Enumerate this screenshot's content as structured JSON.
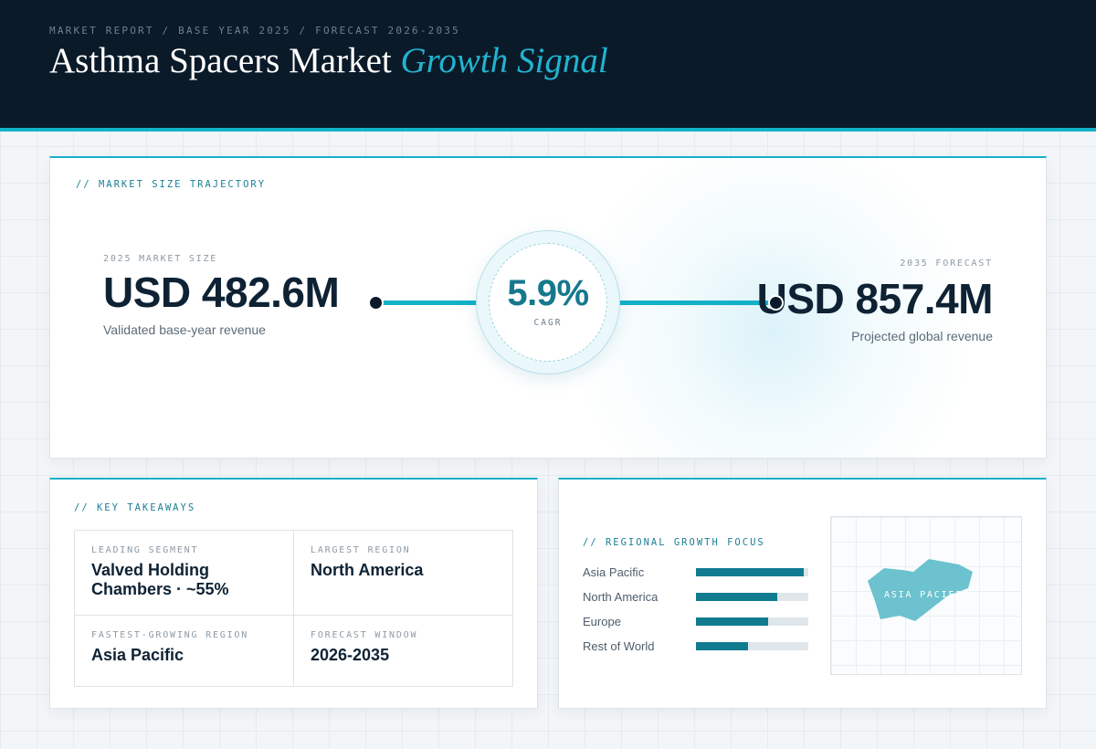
{
  "header": {
    "kicker": "MARKET REPORT / BASE YEAR 2025 / FORECAST 2026-2035",
    "title_main": "Asthma Spacers Market",
    "title_accent": "Growth Signal"
  },
  "trajectory": {
    "section_label": "// MARKET SIZE TRAJECTORY",
    "base_label": "2025 MARKET SIZE",
    "base_value": "USD 482.6M",
    "base_caption": "Validated base-year revenue",
    "cagr_value": "5.9%",
    "cagr_label": "CAGR",
    "forecast_label": "2035 FORECAST",
    "forecast_value": "USD 857.4M",
    "forecast_caption": "Projected global revenue"
  },
  "takeaways": {
    "section_label": "// KEY TAKEAWAYS",
    "cells": [
      {
        "label": "LEADING SEGMENT",
        "value": "Valved Holding Chambers · ~55%"
      },
      {
        "label": "LARGEST REGION",
        "value": "North America"
      },
      {
        "label": "FASTEST-GROWING REGION",
        "value": "Asia Pacific"
      },
      {
        "label": "FORECAST WINDOW",
        "value": "2026-2035"
      }
    ]
  },
  "regional": {
    "section_label": "// REGIONAL GROWTH FOCUS",
    "map_label": "ASIA PACIFIC",
    "map_fill": "#6cc2cf"
  },
  "colors": {
    "accent": "#14b1c9",
    "bar_fill": "#117b8f",
    "bar_track": "#dfe6ec",
    "navy": "#0b1a28"
  },
  "chart_data": {
    "type": "bar",
    "orientation": "horizontal",
    "categories": [
      "Asia Pacific",
      "North America",
      "Europe",
      "Rest of World"
    ],
    "values": [
      0.96,
      0.72,
      0.64,
      0.46
    ],
    "xlim": [
      0,
      1
    ],
    "grid": false
  }
}
